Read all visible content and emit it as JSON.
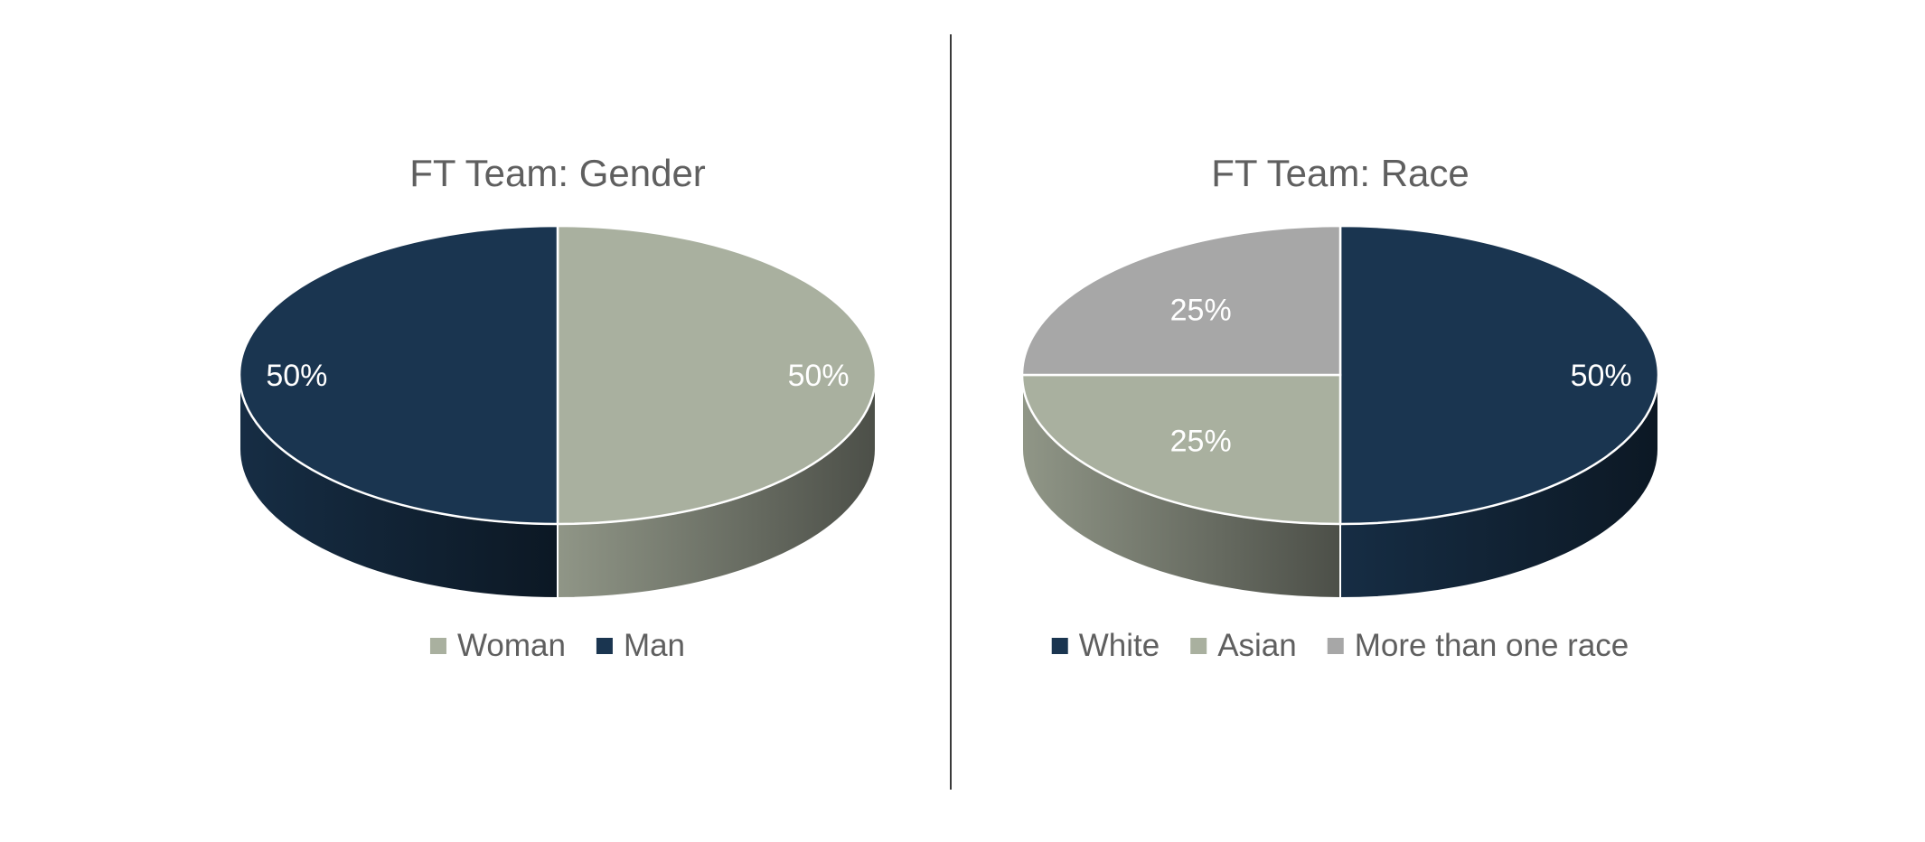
{
  "chart_data": [
    {
      "type": "pie",
      "title": "FT Team: Gender",
      "categories": [
        "Woman",
        "Man"
      ],
      "values": [
        50,
        50
      ],
      "labels": [
        "50%",
        "50%"
      ],
      "legend": [
        "Woman",
        "Man"
      ],
      "legend_position": "bottom",
      "colors": [
        "#a9b09f",
        "#1a3550"
      ],
      "three_d": true
    },
    {
      "type": "pie",
      "title": "FT Team: Race",
      "categories": [
        "White",
        "Asian",
        "More than one race"
      ],
      "values": [
        50,
        25,
        25
      ],
      "labels": [
        "50%",
        "25%",
        "25%"
      ],
      "legend": [
        "White",
        "Asian",
        "More than one race"
      ],
      "legend_position": "bottom",
      "colors": [
        "#1a3550",
        "#a9b09f",
        "#a7a7a7"
      ],
      "three_d": true
    }
  ]
}
